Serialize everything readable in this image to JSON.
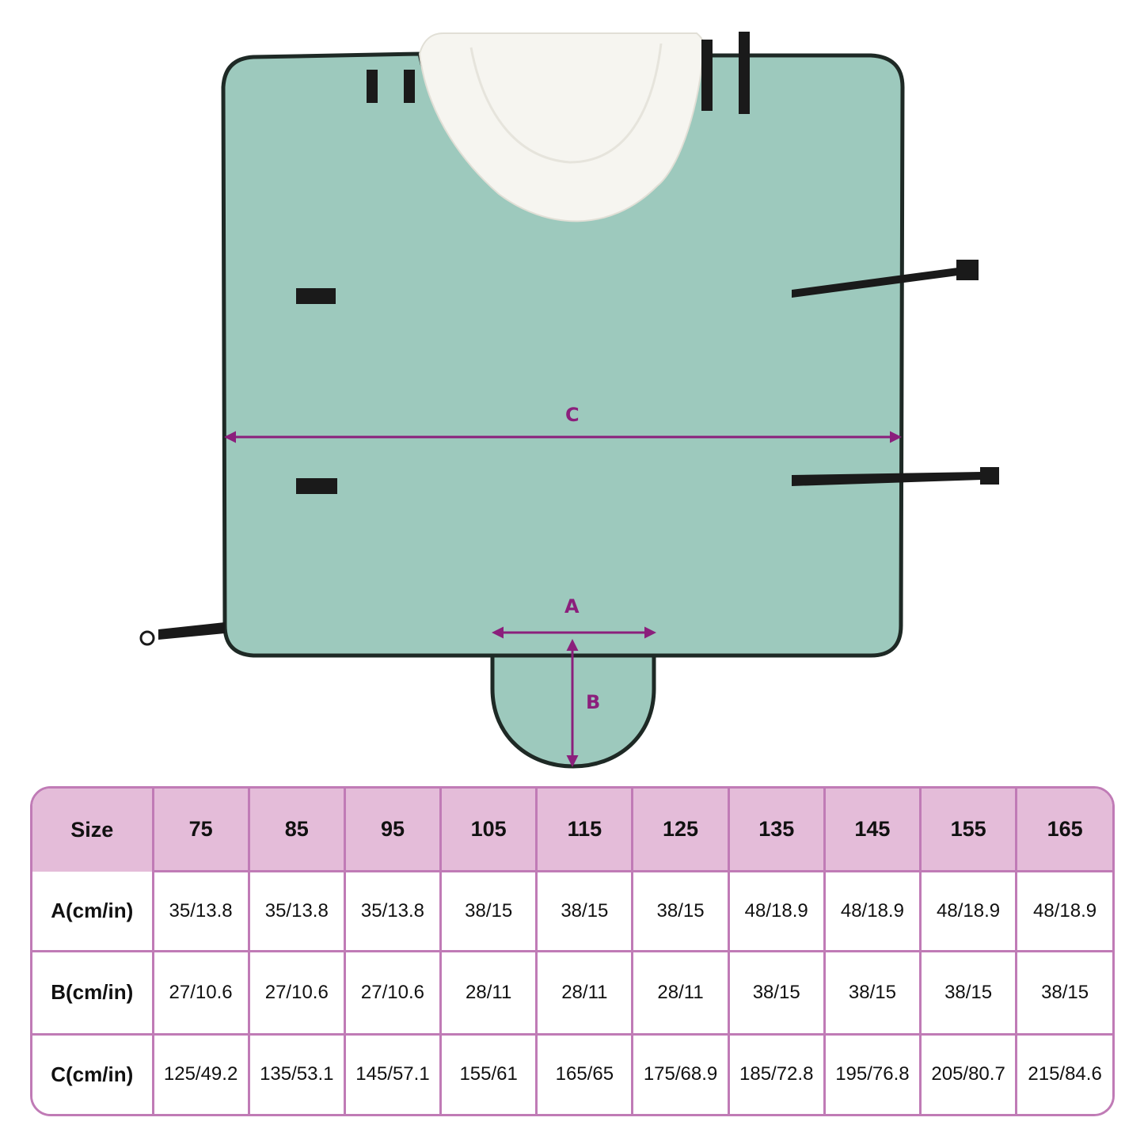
{
  "colors": {
    "blanket": "#9dc9bd",
    "edge": "#1e2925",
    "fleece": "#f6f5f0",
    "dimension_arrow": "#8b1f7c",
    "table_header": "#e4bcd9",
    "table_border": "#c07bb6"
  },
  "dimensions": {
    "a_label": "A",
    "b_label": "B",
    "c_label": "C"
  },
  "size_table": {
    "header": [
      "Size",
      "75",
      "85",
      "95",
      "105",
      "115",
      "125",
      "135",
      "145",
      "155",
      "165"
    ],
    "rows": [
      {
        "label": "A(cm/in)",
        "values": [
          "35/13.8",
          "35/13.8",
          "35/13.8",
          "38/15",
          "38/15",
          "38/15",
          "48/18.9",
          "48/18.9",
          "48/18.9",
          "48/18.9"
        ]
      },
      {
        "label": "B(cm/in)",
        "values": [
          "27/10.6",
          "27/10.6",
          "27/10.6",
          "28/11",
          "28/11",
          "28/11",
          "38/15",
          "38/15",
          "38/15",
          "38/15"
        ]
      },
      {
        "label": "C(cm/in)",
        "values": [
          "125/49.2",
          "135/53.1",
          "145/57.1",
          "155/61",
          "165/65",
          "175/68.9",
          "185/72.8",
          "195/76.8",
          "205/80.7",
          "215/84.6"
        ]
      }
    ]
  }
}
